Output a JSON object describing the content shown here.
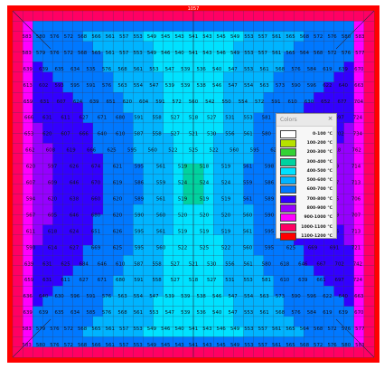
{
  "legend": {
    "title": "Colors",
    "items": [
      {
        "label": "0-100 °C",
        "color": "#ffffff"
      },
      {
        "label": "100-200 °C",
        "color": "#b7e100"
      },
      {
        "label": "200-300 °C",
        "color": "#34d234"
      },
      {
        "label": "300-400 °C",
        "color": "#00d2a0"
      },
      {
        "label": "400-500 °C",
        "color": "#00e1ff"
      },
      {
        "label": "500-600 °C",
        "color": "#00b4ff"
      },
      {
        "label": "600-700 °C",
        "color": "#0078ff"
      },
      {
        "label": "700-800 °C",
        "color": "#3300ff"
      },
      {
        "label": "800-900 °C",
        "color": "#9600ff"
      },
      {
        "label": "900-1000 °C",
        "color": "#ff00ff"
      },
      {
        "label": "1000-1100 °C",
        "color": "#ff0064"
      },
      {
        "label": "1100-1200 °C",
        "color": "#ff0000"
      }
    ]
  },
  "mesh": {
    "edge_label_top": "1057",
    "row_values": [
      [
        "583",
        "580",
        "576",
        "572",
        "568",
        "566",
        "561",
        "557",
        "553",
        "549",
        "545",
        "543",
        "541",
        "543",
        "545",
        "549",
        "553",
        "557",
        "561",
        "565",
        "568",
        "572",
        "576",
        "580",
        "583"
      ],
      [
        "583",
        "579",
        "576",
        "572",
        "568",
        "565",
        "561",
        "557",
        "553",
        "549",
        "546",
        "540",
        "541",
        "543",
        "546",
        "549",
        "553",
        "557",
        "561",
        "565",
        "564",
        "568",
        "572",
        "576",
        "577"
      ],
      [
        "639",
        "639",
        "635",
        "634",
        "535",
        "576",
        "568",
        "561",
        "553",
        "547",
        "539",
        "536",
        "540",
        "547",
        "553",
        "561",
        "568",
        "576",
        "584",
        "619",
        "639",
        "670"
      ],
      [
        "613",
        "602",
        "593",
        "595",
        "591",
        "576",
        "563",
        "554",
        "547",
        "539",
        "539",
        "538",
        "546",
        "547",
        "554",
        "563",
        "573",
        "590",
        "596",
        "622",
        "640",
        "663"
      ],
      [
        "659",
        "631",
        "607",
        "624",
        "639",
        "651",
        "620",
        "604",
        "591",
        "572",
        "560",
        "542",
        "550",
        "554",
        "572",
        "591",
        "610",
        "630",
        "652",
        "677",
        "704"
      ],
      [
        "666",
        "631",
        "611",
        "627",
        "671",
        "680",
        "591",
        "558",
        "527",
        "518",
        "527",
        "531",
        "553",
        "581",
        "610",
        "639",
        "661",
        "697",
        "724"
      ],
      [
        "653",
        "620",
        "607",
        "666",
        "640",
        "610",
        "587",
        "558",
        "527",
        "521",
        "530",
        "556",
        "561",
        "580",
        "618",
        "646",
        "667",
        "702",
        "734"
      ],
      [
        "662",
        "608",
        "619",
        "666",
        "625",
        "595",
        "560",
        "522",
        "525",
        "522",
        "560",
        "595",
        "625",
        "663",
        "692",
        "718",
        "762"
      ],
      [
        "620",
        "597",
        "626",
        "674",
        "621",
        "595",
        "561",
        "519",
        "518",
        "519",
        "561",
        "598",
        "621",
        "662",
        "689",
        "714"
      ],
      [
        "607",
        "609",
        "646",
        "670",
        "619",
        "586",
        "559",
        "524",
        "524",
        "524",
        "559",
        "586",
        "619",
        "650",
        "687",
        "713"
      ],
      [
        "594",
        "620",
        "638",
        "660",
        "620",
        "589",
        "561",
        "519",
        "519",
        "519",
        "561",
        "589",
        "620",
        "641",
        "685",
        "706"
      ],
      [
        "567",
        "605",
        "646",
        "680",
        "620",
        "590",
        "560",
        "520",
        "520",
        "520",
        "560",
        "590",
        "620",
        "662",
        "689",
        "707"
      ],
      [
        "611",
        "618",
        "624",
        "651",
        "626",
        "595",
        "561",
        "519",
        "519",
        "519",
        "561",
        "595",
        "626",
        "656",
        "686",
        "713"
      ],
      [
        "590",
        "614",
        "627",
        "669",
        "625",
        "595",
        "560",
        "522",
        "525",
        "522",
        "560",
        "595",
        "625",
        "669",
        "691",
        "721"
      ],
      [
        "639",
        "631",
        "625",
        "684",
        "646",
        "610",
        "587",
        "558",
        "527",
        "521",
        "530",
        "556",
        "561",
        "580",
        "618",
        "646",
        "667",
        "702",
        "742"
      ],
      [
        "659",
        "631",
        "611",
        "627",
        "671",
        "680",
        "591",
        "558",
        "527",
        "518",
        "527",
        "531",
        "553",
        "581",
        "610",
        "639",
        "661",
        "697",
        "724"
      ],
      [
        "636",
        "640",
        "630",
        "596",
        "591",
        "576",
        "563",
        "554",
        "547",
        "539",
        "539",
        "538",
        "546",
        "547",
        "554",
        "563",
        "573",
        "590",
        "596",
        "622",
        "640",
        "663"
      ],
      [
        "639",
        "639",
        "635",
        "634",
        "585",
        "576",
        "568",
        "561",
        "553",
        "547",
        "539",
        "536",
        "540",
        "547",
        "553",
        "561",
        "568",
        "576",
        "584",
        "619",
        "639",
        "670"
      ],
      [
        "583",
        "579",
        "576",
        "572",
        "568",
        "565",
        "561",
        "557",
        "553",
        "549",
        "546",
        "540",
        "541",
        "543",
        "546",
        "549",
        "553",
        "557",
        "561",
        "565",
        "564",
        "568",
        "572",
        "576",
        "577"
      ],
      [
        "583",
        "580",
        "576",
        "572",
        "568",
        "566",
        "561",
        "557",
        "553",
        "549",
        "545",
        "543",
        "541",
        "543",
        "545",
        "549",
        "553",
        "557",
        "561",
        "565",
        "568",
        "572",
        "576",
        "580",
        "583"
      ]
    ]
  }
}
